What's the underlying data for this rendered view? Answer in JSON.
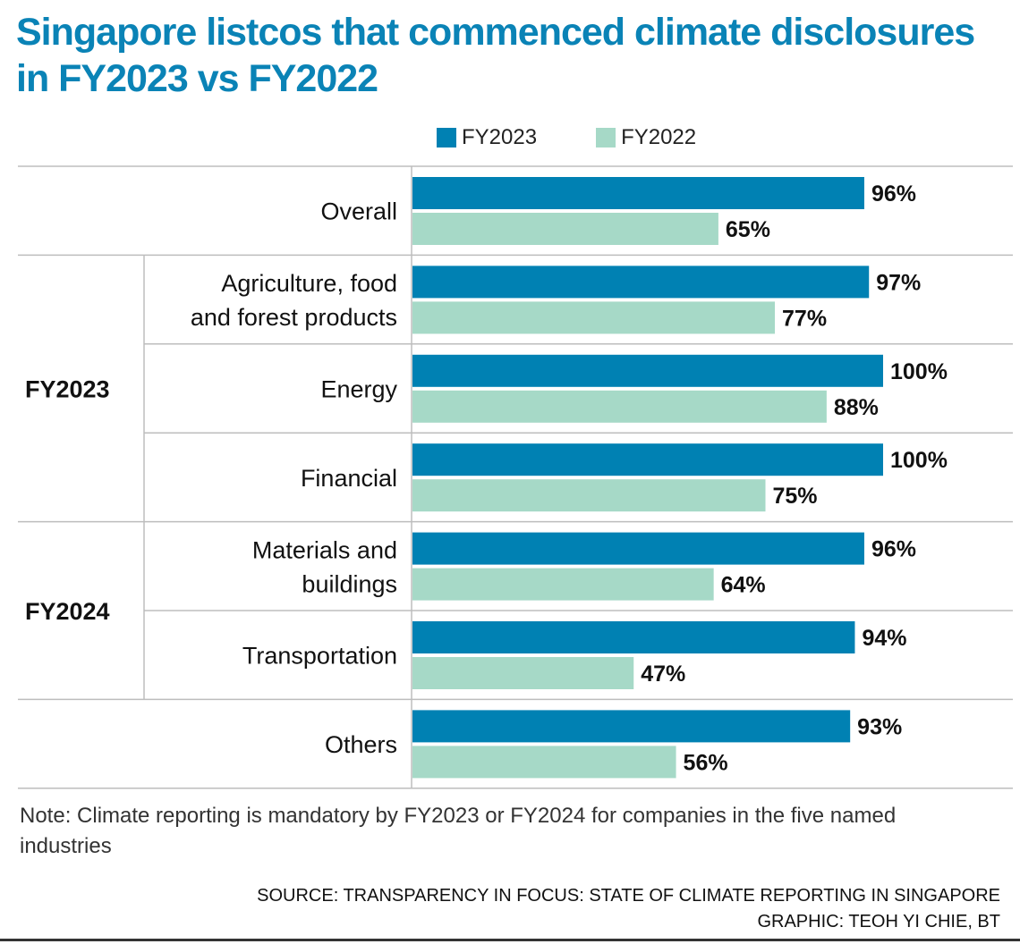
{
  "title": "Singapore listcos that commenced climate disclosures in FY2023 vs FY2022",
  "legend": [
    {
      "label": "FY2023",
      "color": "#0081b3"
    },
    {
      "label": "FY2022",
      "color": "#a6d9c7"
    }
  ],
  "note": "Note: Climate reporting is mandatory by FY2023 or FY2024 for companies in the five named industries",
  "source": "SOURCE: TRANSPARENCY IN FOCUS: STATE OF CLIMATE REPORTING IN SINGAPORE",
  "credit": "GRAPHIC: TEOH YI CHIE, BT",
  "chart_data": {
    "type": "bar",
    "orientation": "horizontal",
    "title": "Singapore listcos that commenced climate disclosures in FY2023 vs FY2022",
    "xlabel": "",
    "ylabel": "",
    "xlim": [
      0,
      100
    ],
    "unit": "%",
    "grid": false,
    "legend_position": "top",
    "categories": [
      {
        "label": [
          "Overall"
        ],
        "group": null
      },
      {
        "label": [
          "Agriculture, food",
          "and forest products"
        ],
        "group": "FY2023"
      },
      {
        "label": [
          "Energy"
        ],
        "group": "FY2023"
      },
      {
        "label": [
          "Financial"
        ],
        "group": "FY2023"
      },
      {
        "label": [
          "Materials and",
          "buildings"
        ],
        "group": "FY2024"
      },
      {
        "label": [
          "Transportation"
        ],
        "group": "FY2024"
      },
      {
        "label": [
          "Others"
        ],
        "group": null
      }
    ],
    "groups": [
      {
        "label": "FY2023",
        "start": 1,
        "end": 3
      },
      {
        "label": "FY2024",
        "start": 4,
        "end": 5
      }
    ],
    "series": [
      {
        "name": "FY2023",
        "color": "#0081b3",
        "values": [
          96,
          97,
          100,
          100,
          96,
          94,
          93
        ],
        "labels": [
          "96%",
          "97%",
          "100%",
          "100%",
          "96%",
          "94%",
          "93%"
        ]
      },
      {
        "name": "FY2022",
        "color": "#a6d9c7",
        "values": [
          65,
          77,
          88,
          75,
          64,
          47,
          56
        ],
        "labels": [
          "65%",
          "77%",
          "88%",
          "75%",
          "64%",
          "47%",
          "56%"
        ]
      }
    ]
  }
}
